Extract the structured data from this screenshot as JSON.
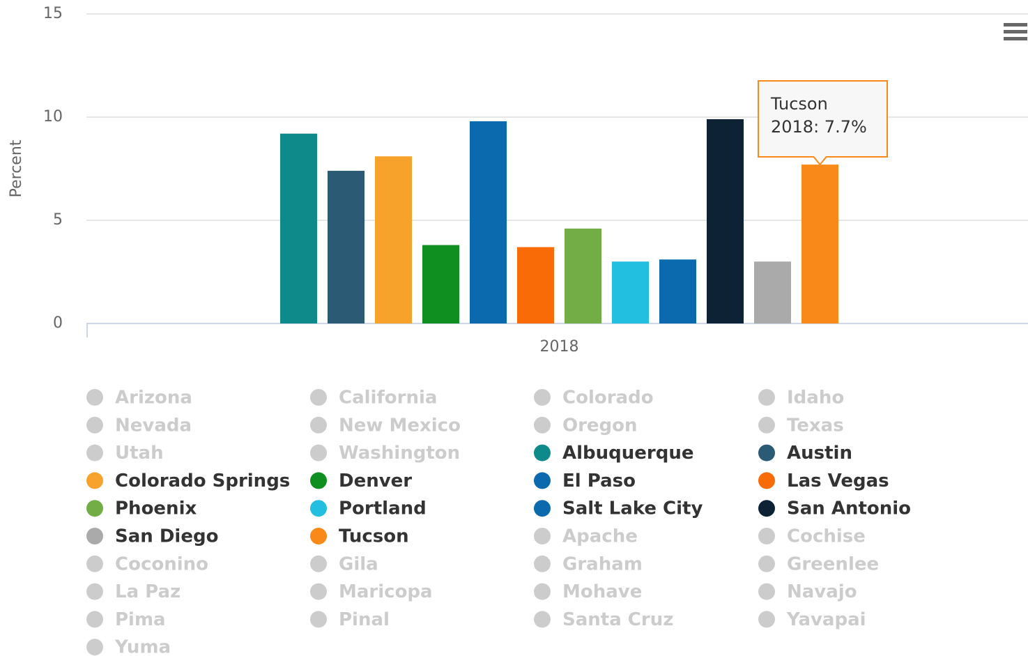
{
  "chart_data": {
    "type": "bar",
    "y_axis_label": "Percent",
    "categories": [
      "2018"
    ],
    "ylim": [
      0,
      15
    ],
    "yticks": [
      0,
      5,
      10,
      15
    ],
    "grid": true,
    "tooltip": {
      "title": "Tucson",
      "text": "2018: 7.7%"
    },
    "series": [
      {
        "name": "Arizona",
        "visible": false,
        "values": [
          null
        ]
      },
      {
        "name": "California",
        "visible": false,
        "values": [
          null
        ]
      },
      {
        "name": "Colorado",
        "visible": false,
        "values": [
          null
        ]
      },
      {
        "name": "Idaho",
        "visible": false,
        "values": [
          null
        ]
      },
      {
        "name": "Nevada",
        "visible": false,
        "values": [
          null
        ]
      },
      {
        "name": "New Mexico",
        "visible": false,
        "values": [
          null
        ]
      },
      {
        "name": "Oregon",
        "visible": false,
        "values": [
          null
        ]
      },
      {
        "name": "Texas",
        "visible": false,
        "values": [
          null
        ]
      },
      {
        "name": "Utah",
        "visible": false,
        "values": [
          null
        ]
      },
      {
        "name": "Washington",
        "visible": false,
        "values": [
          null
        ]
      },
      {
        "name": "Albuquerque",
        "visible": true,
        "color": "#0e8a8a",
        "values": [
          9.2
        ]
      },
      {
        "name": "Austin",
        "visible": true,
        "color": "#2b5b74",
        "values": [
          7.4
        ]
      },
      {
        "name": "Colorado Springs",
        "visible": true,
        "color": "#f7a32b",
        "values": [
          8.1
        ]
      },
      {
        "name": "Denver",
        "visible": true,
        "color": "#0f8f1f",
        "values": [
          3.8
        ]
      },
      {
        "name": "El Paso",
        "visible": true,
        "color": "#0a6aad",
        "values": [
          9.8
        ]
      },
      {
        "name": "Las Vegas",
        "visible": true,
        "color": "#f96b06",
        "values": [
          3.7
        ]
      },
      {
        "name": "Phoenix",
        "visible": true,
        "color": "#72ad46",
        "values": [
          4.6
        ]
      },
      {
        "name": "Portland",
        "visible": true,
        "color": "#23bfe0",
        "values": [
          3.0
        ]
      },
      {
        "name": "Salt Lake City",
        "visible": true,
        "color": "#0a6aad",
        "values": [
          3.1
        ]
      },
      {
        "name": "San Antonio",
        "visible": true,
        "color": "#0e2235",
        "values": [
          9.9
        ]
      },
      {
        "name": "San Diego",
        "visible": true,
        "color": "#aaaaaa",
        "values": [
          3.0
        ]
      },
      {
        "name": "Tucson",
        "visible": true,
        "color": "#f98a1a",
        "values": [
          7.7
        ]
      },
      {
        "name": "Apache",
        "visible": false,
        "values": [
          null
        ]
      },
      {
        "name": "Cochise",
        "visible": false,
        "values": [
          null
        ]
      },
      {
        "name": "Coconino",
        "visible": false,
        "values": [
          null
        ]
      },
      {
        "name": "Gila",
        "visible": false,
        "values": [
          null
        ]
      },
      {
        "name": "Graham",
        "visible": false,
        "values": [
          null
        ]
      },
      {
        "name": "Greenlee",
        "visible": false,
        "values": [
          null
        ]
      },
      {
        "name": "La Paz",
        "visible": false,
        "values": [
          null
        ]
      },
      {
        "name": "Maricopa",
        "visible": false,
        "values": [
          null
        ]
      },
      {
        "name": "Mohave",
        "visible": false,
        "values": [
          null
        ]
      },
      {
        "name": "Navajo",
        "visible": false,
        "values": [
          null
        ]
      },
      {
        "name": "Pima",
        "visible": false,
        "values": [
          null
        ]
      },
      {
        "name": "Pinal",
        "visible": false,
        "values": [
          null
        ]
      },
      {
        "name": "Santa Cruz",
        "visible": false,
        "values": [
          null
        ]
      },
      {
        "name": "Yavapai",
        "visible": false,
        "values": [
          null
        ]
      },
      {
        "name": "Yuma",
        "visible": false,
        "values": [
          null
        ]
      }
    ]
  }
}
